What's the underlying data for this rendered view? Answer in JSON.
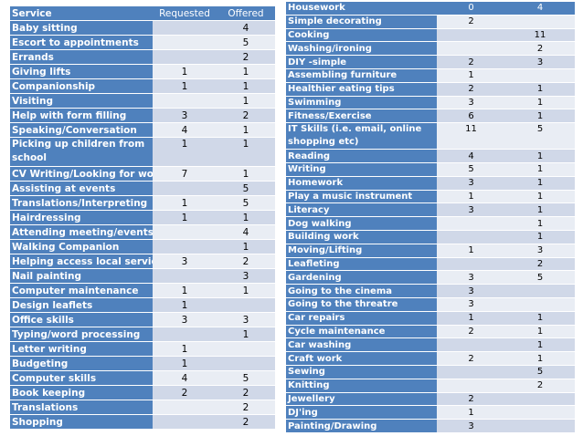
{
  "left_table": {
    "headers": [
      "Service",
      "Requested",
      "Offered"
    ],
    "rows": [
      {
        "service": "Baby sitting",
        "requested": "",
        "offered": "4"
      },
      {
        "service": "Escort to appointments",
        "requested": "",
        "offered": "5"
      },
      {
        "service": "Errands",
        "requested": "",
        "offered": "2"
      },
      {
        "service": "Giving lifts",
        "requested": "1",
        "offered": "1"
      },
      {
        "service": "Companionship",
        "requested": "1",
        "offered": "1"
      },
      {
        "service": "Visiting",
        "requested": "",
        "offered": "1"
      },
      {
        "service": "Help with form filling",
        "requested": "3",
        "offered": "2"
      },
      {
        "service": "Speaking/Conversation",
        "requested": "4",
        "offered": "1"
      },
      {
        "service": "Picking up children from school",
        "requested": "1",
        "offered": "1"
      },
      {
        "service": "CV Writing/Looking for work",
        "requested": "7",
        "offered": "1"
      },
      {
        "service": "Assisting at events",
        "requested": "",
        "offered": "5"
      },
      {
        "service": "Translations/Interpreting",
        "requested": "1",
        "offered": "5"
      },
      {
        "service": "Hairdressing",
        "requested": "1",
        "offered": "1"
      },
      {
        "service": "Attending meeting/events",
        "requested": "",
        "offered": "4"
      },
      {
        "service": "Walking Companion",
        "requested": "",
        "offered": "1"
      },
      {
        "service": "Helping access local services",
        "requested": "3",
        "offered": "2"
      },
      {
        "service": "Nail painting",
        "requested": "",
        "offered": "3"
      },
      {
        "service": "Computer maintenance",
        "requested": "1",
        "offered": "1"
      },
      {
        "service": "Design leaflets",
        "requested": "1",
        "offered": ""
      },
      {
        "service": "Office skills",
        "requested": "3",
        "offered": "3"
      },
      {
        "service": "Typing/word processing",
        "requested": "",
        "offered": "1"
      },
      {
        "service": "Letter writing",
        "requested": "1",
        "offered": ""
      },
      {
        "service": "Budgeting",
        "requested": "1",
        "offered": ""
      },
      {
        "service": "Computer skills",
        "requested": "4",
        "offered": "5"
      },
      {
        "service": "Book keeping",
        "requested": "2",
        "offered": "2"
      },
      {
        "service": "Translations",
        "requested": "",
        "offered": "2"
      },
      {
        "service": "Shopping",
        "requested": "",
        "offered": "2"
      }
    ]
  },
  "right_table": {
    "header": {
      "service": "Housework",
      "requested": "0",
      "offered": "4"
    },
    "rows": [
      {
        "service": "Simple decorating",
        "requested": "2",
        "offered": ""
      },
      {
        "service": "Cooking",
        "requested": "",
        "offered": "11"
      },
      {
        "service": "Washing/ironing",
        "requested": "",
        "offered": "2"
      },
      {
        "service": "DIY -simple",
        "requested": "2",
        "offered": "3"
      },
      {
        "service": "Assembling furniture",
        "requested": "1",
        "offered": ""
      },
      {
        "service": "Healthier eating tips",
        "requested": "2",
        "offered": "1"
      },
      {
        "service": "Swimming",
        "requested": "3",
        "offered": "1"
      },
      {
        "service": "Fitness/Exercise",
        "requested": "6",
        "offered": "1"
      },
      {
        "service": "IT Skills (i.e. email, online shopping etc)",
        "requested": "11",
        "offered": "5"
      },
      {
        "service": "Reading",
        "requested": "4",
        "offered": "1"
      },
      {
        "service": "Writing",
        "requested": "5",
        "offered": "1"
      },
      {
        "service": "Homework",
        "requested": "3",
        "offered": "1"
      },
      {
        "service": "Play a music instrument",
        "requested": "1",
        "offered": "1"
      },
      {
        "service": "Literacy",
        "requested": "3",
        "offered": "1"
      },
      {
        "service": "Dog walking",
        "requested": "",
        "offered": "1"
      },
      {
        "service": "Building work",
        "requested": "",
        "offered": "1"
      },
      {
        "service": "Moving/Lifting",
        "requested": "1",
        "offered": "3"
      },
      {
        "service": "Leafleting",
        "requested": "",
        "offered": "2"
      },
      {
        "service": "Gardening",
        "requested": "3",
        "offered": "5"
      },
      {
        "service": "Going to the cinema",
        "requested": "3",
        "offered": ""
      },
      {
        "service": "Going to the threatre",
        "requested": "3",
        "offered": ""
      },
      {
        "service": "Car repairs",
        "requested": "1",
        "offered": "1"
      },
      {
        "service": "Cycle maintenance",
        "requested": "2",
        "offered": "1"
      },
      {
        "service": "Car washing",
        "requested": "",
        "offered": "1"
      },
      {
        "service": "Craft work",
        "requested": "2",
        "offered": "1"
      },
      {
        "service": "Sewing",
        "requested": "",
        "offered": "5"
      },
      {
        "service": "Knitting",
        "requested": "",
        "offered": "2"
      },
      {
        "service": "Jewellery",
        "requested": "2",
        "offered": ""
      },
      {
        "service": "DJ'ing",
        "requested": "1",
        "offered": ""
      },
      {
        "service": "Painting/Drawing",
        "requested": "3",
        "offered": ""
      }
    ]
  }
}
